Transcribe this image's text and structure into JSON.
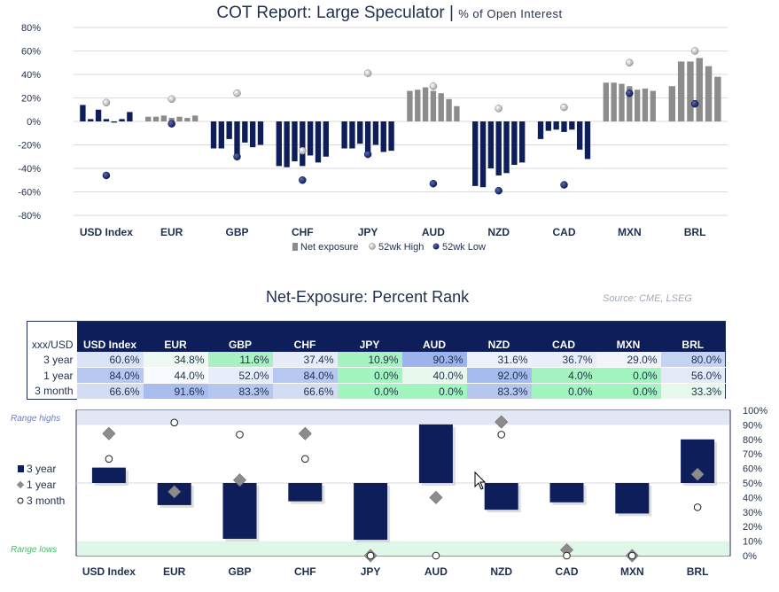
{
  "header": {
    "title": "COT Report: Large Speculator",
    "separator": "|",
    "subtitle": "% of Open Interest"
  },
  "rank_header": {
    "title": "Net-Exposure: Percent Rank",
    "source": "Source: CME, LSEG"
  },
  "colors": {
    "navy": "#0e1e5b",
    "gray_bar": "#8c8c8c",
    "high_dot": "#a6a6a6",
    "low_dot": "#0e1e5b",
    "range_high_band": "#e3e6f3",
    "range_low_band": "#dff7e6"
  },
  "chart_data": [
    {
      "type": "bar",
      "title": "COT Report: Large Speculator | % of Open Interest",
      "ylim": [
        -80,
        80
      ],
      "yticks": [
        "80%",
        "60%",
        "40%",
        "20%",
        "0%",
        "-20%",
        "-40%",
        "-60%",
        "-80%"
      ],
      "grid": true,
      "legend_position": "bottom",
      "legend": [
        "Net exposure",
        "52wk High",
        "52wk Low"
      ],
      "categories": [
        "USD Index",
        "EUR",
        "GBP",
        "CHF",
        "JPY",
        "AUD",
        "NZD",
        "CAD",
        "MXN",
        "BRL"
      ],
      "series": [
        {
          "name": "Net exposure",
          "values": [
            [
              14,
              2,
              10,
              2,
              -1,
              2,
              8
            ],
            [
              4,
              4,
              5,
              3,
              4,
              3,
              5
            ],
            [
              -23,
              -23,
              -15,
              -28,
              -18,
              -22,
              -20
            ],
            [
              -38,
              -39,
              -34,
              -38,
              -29,
              -35,
              -30
            ],
            [
              -23,
              -23,
              -19,
              -26,
              -20,
              -26,
              -25
            ],
            [
              26,
              27,
              29,
              26,
              24,
              19,
              13
            ],
            [
              -55,
              -56,
              -40,
              -46,
              -44,
              -37,
              -35
            ],
            [
              -15,
              -8,
              -7,
              -9,
              -7,
              -24,
              -32
            ],
            [
              33,
              33,
              32,
              30,
              27,
              28,
              26
            ],
            [
              30,
              51,
              51,
              54,
              47,
              38
            ]
          ]
        },
        {
          "name": "52wk High",
          "values": [
            16,
            19,
            24,
            -25,
            41,
            30,
            11,
            12,
            50,
            60
          ]
        },
        {
          "name": "52wk Low",
          "values": [
            -46,
            -2,
            -30,
            -50,
            -28,
            -53,
            -59,
            -54,
            24,
            15
          ]
        }
      ]
    },
    {
      "type": "bar",
      "ylim": [
        0,
        100
      ],
      "yticks": [
        "100%",
        "90%",
        "80%",
        "70%",
        "60%",
        "50%",
        "40%",
        "30%",
        "20%",
        "10%",
        "0%"
      ],
      "band_labels": {
        "high": "Range highs",
        "low": "Range lows"
      },
      "legend": [
        "3 year",
        "1 year",
        "3 month"
      ],
      "legend_position": "left",
      "categories": [
        "USD Index",
        "EUR",
        "GBP",
        "CHF",
        "JPY",
        "AUD",
        "NZD",
        "CAD",
        "MXN",
        "BRL"
      ],
      "series": [
        {
          "name": "3 year",
          "values": [
            60.6,
            34.8,
            11.6,
            37.4,
            10.9,
            90.3,
            31.6,
            36.7,
            29.0,
            80.0
          ]
        },
        {
          "name": "1 year",
          "values": [
            84.0,
            44.0,
            52.0,
            84.0,
            0.0,
            40.0,
            92.0,
            4.0,
            0.0,
            56.0
          ]
        },
        {
          "name": "3 month",
          "values": [
            66.6,
            91.6,
            83.3,
            66.6,
            0.0,
            0.0,
            83.3,
            0.0,
            0.0,
            33.3
          ]
        }
      ]
    }
  ],
  "table": {
    "corner": "xxx/USD",
    "columns": [
      "USD Index",
      "EUR",
      "GBP",
      "CHF",
      "JPY",
      "AUD",
      "NZD",
      "CAD",
      "MXN",
      "BRL"
    ],
    "rows": [
      {
        "label": "3 year",
        "cells": [
          "60.6%",
          "34.8%",
          "11.6%",
          "37.4%",
          "10.9%",
          "90.3%",
          "31.6%",
          "36.7%",
          "29.0%",
          "80.0%"
        ],
        "colors": [
          "#dbe3f6",
          "#eefaf1",
          "#a9f0c2",
          "#e6ecf8",
          "#a6f2c0",
          "#9db3ec",
          "#ecf1fa",
          "#e9eef9",
          "#f1f4fb",
          "#c4d3f2"
        ]
      },
      {
        "label": "1 year",
        "cells": [
          "84.0%",
          "44.0%",
          "52.0%",
          "84.0%",
          "0.0%",
          "40.0%",
          "92.0%",
          "4.0%",
          "0.0%",
          "56.0%"
        ],
        "colors": [
          "#b6c8ef",
          "#f7fbff",
          "#e5eef9",
          "#b6c8ef",
          "#a3f5bf",
          "#e7f8ec",
          "#a6bcec",
          "#a6f2c1",
          "#a3f5bf",
          "#e3eaf8"
        ]
      },
      {
        "label": "3 month",
        "cells": [
          "66.6%",
          "91.6%",
          "83.3%",
          "66.6%",
          "0.0%",
          "0.0%",
          "83.3%",
          "0.0%",
          "0.0%",
          "33.3%"
        ],
        "colors": [
          "#d2dcf3",
          "#a8bdec",
          "#b6c7ef",
          "#d2dcf3",
          "#a3f5bf",
          "#a3f5bf",
          "#b6c7ef",
          "#a3f5bf",
          "#a3f5bf",
          "#e6f9ec"
        ]
      }
    ]
  }
}
